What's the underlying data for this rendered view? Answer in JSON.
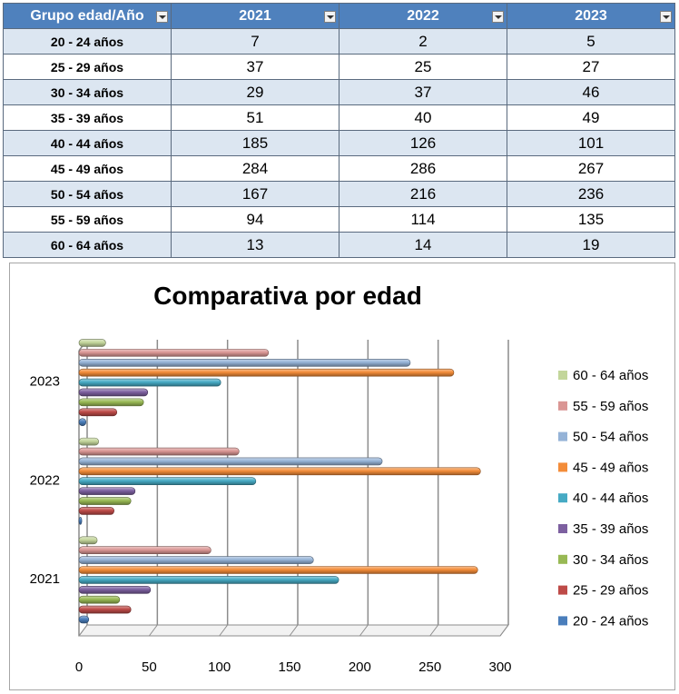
{
  "table": {
    "headers": [
      "Grupo edad/Año",
      "2021",
      "2022",
      "2023"
    ],
    "rows": [
      [
        "20 - 24 años",
        "7",
        "2",
        "5"
      ],
      [
        "25 - 29 años",
        "37",
        "25",
        "27"
      ],
      [
        "30 - 34 años",
        "29",
        "37",
        "46"
      ],
      [
        "35 - 39 años",
        "51",
        "40",
        "49"
      ],
      [
        "40 - 44 años",
        "185",
        "126",
        "101"
      ],
      [
        "45 - 49 años",
        "284",
        "286",
        "267"
      ],
      [
        "50 - 54 años",
        "167",
        "216",
        "236"
      ],
      [
        "55 - 59 años",
        "94",
        "114",
        "135"
      ],
      [
        "60 - 64 años",
        "13",
        "14",
        "19"
      ]
    ]
  },
  "chart_data": {
    "type": "bar",
    "orientation": "horizontal",
    "title": "Comparativa por edad",
    "categories": [
      "2021",
      "2022",
      "2023"
    ],
    "series": [
      {
        "name": "20 - 24 años",
        "values": [
          7,
          2,
          5
        ],
        "color": "#4a7ebb"
      },
      {
        "name": "25 - 29 años",
        "values": [
          37,
          25,
          27
        ],
        "color": "#be4b48"
      },
      {
        "name": "30 - 34 años",
        "values": [
          29,
          37,
          46
        ],
        "color": "#98b954"
      },
      {
        "name": "35 - 39 años",
        "values": [
          51,
          40,
          49
        ],
        "color": "#7d60a0"
      },
      {
        "name": "40 - 44 años",
        "values": [
          185,
          126,
          101
        ],
        "color": "#46aac4"
      },
      {
        "name": "45 - 49 años",
        "values": [
          284,
          286,
          267
        ],
        "color": "#f38c39"
      },
      {
        "name": "50 - 54 años",
        "values": [
          167,
          216,
          236
        ],
        "color": "#95b3d7"
      },
      {
        "name": "55 - 59 años",
        "values": [
          94,
          114,
          135
        ],
        "color": "#da9694"
      },
      {
        "name": "60 - 64 años",
        "values": [
          13,
          14,
          19
        ],
        "color": "#c3d69b"
      }
    ],
    "xlim": [
      0,
      300
    ],
    "xticks": [
      "0",
      "50",
      "100",
      "150",
      "200",
      "250",
      "300"
    ],
    "grid": true,
    "legend": "right"
  }
}
